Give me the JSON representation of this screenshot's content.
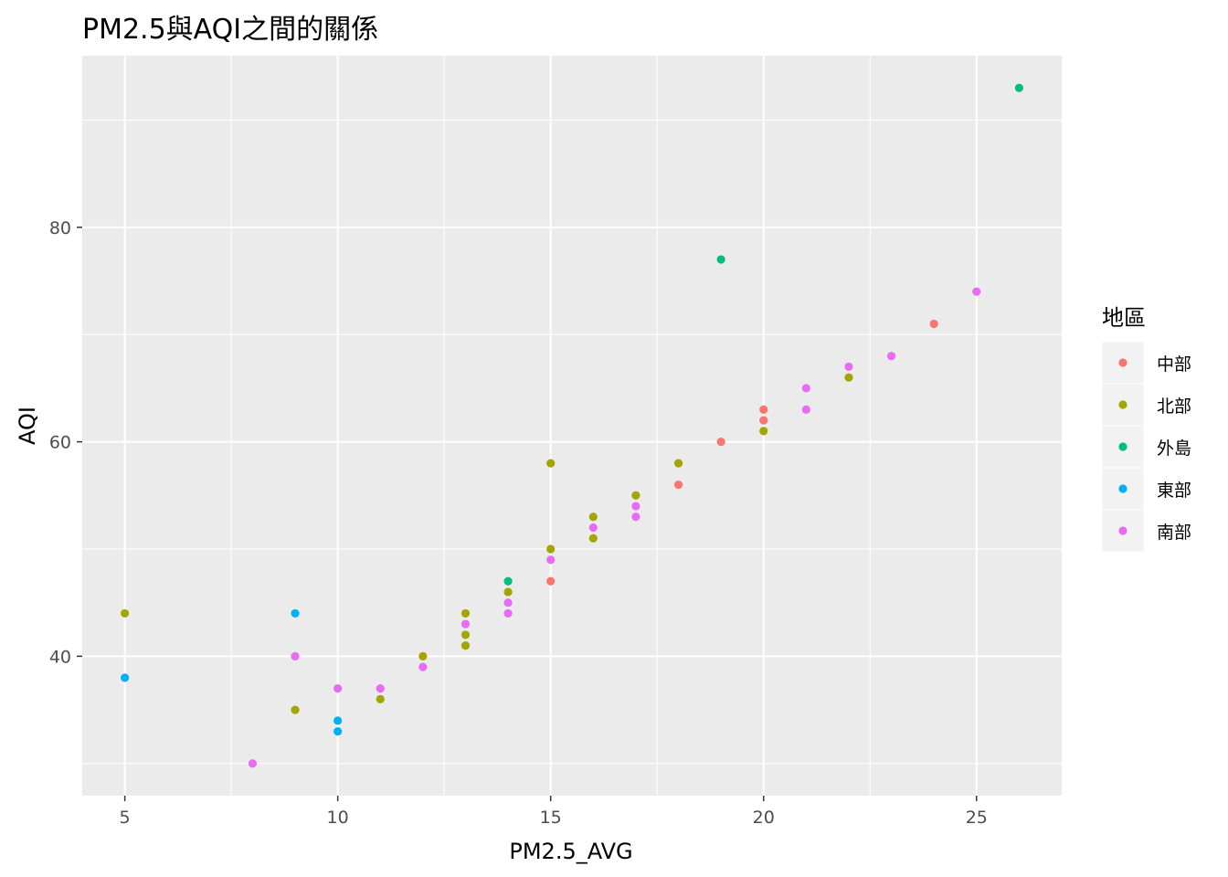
{
  "chart_data": {
    "type": "scatter",
    "title": "PM2.5與AQI之間的關係",
    "xlabel": "PM2.5_AVG",
    "ylabel": "AQI",
    "xlim": [
      4,
      27
    ],
    "ylim": [
      27,
      96
    ],
    "x_ticks": [
      5,
      10,
      15,
      20,
      25
    ],
    "y_ticks": [
      40,
      60,
      80
    ],
    "grid": true,
    "legend": {
      "title": "地區",
      "position": "right"
    },
    "series": [
      {
        "name": "中部",
        "color": "#F8766D",
        "points": [
          [
            15,
            47
          ],
          [
            18,
            56
          ],
          [
            19,
            60
          ],
          [
            20,
            62
          ],
          [
            20,
            63
          ],
          [
            24,
            71
          ]
        ]
      },
      {
        "name": "北部",
        "color": "#A3A500",
        "points": [
          [
            5,
            44
          ],
          [
            9,
            35
          ],
          [
            11,
            36
          ],
          [
            12,
            40
          ],
          [
            13,
            41
          ],
          [
            13,
            42
          ],
          [
            13,
            44
          ],
          [
            14,
            46
          ],
          [
            15,
            50
          ],
          [
            15,
            58
          ],
          [
            16,
            51
          ],
          [
            16,
            53
          ],
          [
            17,
            55
          ],
          [
            18,
            58
          ],
          [
            20,
            61
          ],
          [
            22,
            66
          ]
        ]
      },
      {
        "name": "外島",
        "color": "#00BF7D",
        "points": [
          [
            14,
            47
          ],
          [
            19,
            77
          ],
          [
            26,
            93
          ]
        ]
      },
      {
        "name": "東部",
        "color": "#00B0F6",
        "points": [
          [
            5,
            38
          ],
          [
            9,
            44
          ],
          [
            10,
            33
          ],
          [
            10,
            34
          ]
        ]
      },
      {
        "name": "南部",
        "color": "#E76BF3",
        "points": [
          [
            8,
            30
          ],
          [
            9,
            40
          ],
          [
            10,
            37
          ],
          [
            11,
            37
          ],
          [
            12,
            39
          ],
          [
            13,
            43
          ],
          [
            14,
            44
          ],
          [
            14,
            45
          ],
          [
            15,
            49
          ],
          [
            16,
            52
          ],
          [
            17,
            53
          ],
          [
            17,
            54
          ],
          [
            21,
            63
          ],
          [
            21,
            65
          ],
          [
            22,
            67
          ],
          [
            23,
            68
          ],
          [
            25,
            74
          ]
        ]
      }
    ]
  }
}
